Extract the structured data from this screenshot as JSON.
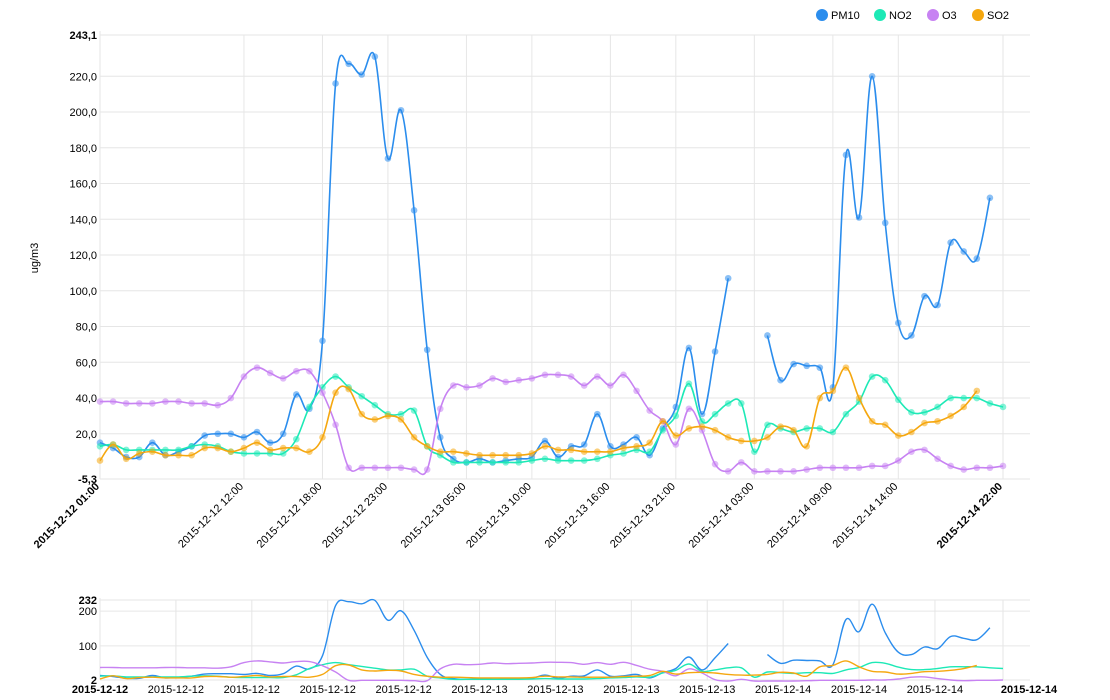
{
  "chart_data": [
    {
      "type": "line",
      "ylabel": "ug/m3",
      "ylim": [
        -5.3,
        243.1
      ],
      "y_ticks": [
        "243,1",
        "220,0",
        "200,0",
        "180,0",
        "160,0",
        "140,0",
        "120,0",
        "100,0",
        "80,0",
        "60,0",
        "40,0",
        "20,0",
        "-5,3"
      ],
      "y_tick_values": [
        243.1,
        220,
        200,
        180,
        160,
        140,
        120,
        100,
        80,
        60,
        40,
        20,
        -5.3
      ],
      "x_ticks": [
        {
          "label": "2015-12-12 01:00",
          "index": 0,
          "bold": true
        },
        {
          "label": "2015-12-12 12:00",
          "index": 11,
          "bold": false
        },
        {
          "label": "2015-12-12 18:00",
          "index": 17,
          "bold": false
        },
        {
          "label": "2015-12-12 23:00",
          "index": 22,
          "bold": false
        },
        {
          "label": "2015-12-13 05:00",
          "index": 28,
          "bold": false
        },
        {
          "label": "2015-12-13 10:00",
          "index": 33,
          "bold": false
        },
        {
          "label": "2015-12-13 16:00",
          "index": 39,
          "bold": false
        },
        {
          "label": "2015-12-13 21:00",
          "index": 44,
          "bold": false
        },
        {
          "label": "2015-12-14 03:00",
          "index": 50,
          "bold": false
        },
        {
          "label": "2015-12-14 09:00",
          "index": 56,
          "bold": false
        },
        {
          "label": "2015-12-14 14:00",
          "index": 61,
          "bold": false
        },
        {
          "label": "2015-12-14 22:00",
          "index": 69,
          "bold": true
        }
      ],
      "x_count": 70,
      "series": [
        {
          "name": "PM10",
          "color": "#2b8ded",
          "values": [
            15,
            12,
            7,
            7,
            15,
            8,
            10,
            13,
            19,
            20,
            20,
            18,
            21,
            15,
            20,
            42,
            34,
            72,
            216,
            227,
            221,
            231,
            174,
            201,
            145,
            67,
            18,
            6,
            4,
            6,
            4,
            5,
            6,
            7,
            16,
            7,
            13,
            14,
            31,
            13,
            14,
            18,
            8,
            23,
            35,
            68,
            31,
            66,
            107,
            null,
            null,
            75,
            50,
            59,
            58,
            57,
            46,
            176,
            141,
            220,
            138,
            82,
            75,
            97,
            92,
            127,
            122,
            118,
            152,
            null
          ]
        },
        {
          "name": "NO2",
          "color": "#1de9b6",
          "values": [
            13,
            14,
            11,
            11,
            11,
            11,
            11,
            13,
            14,
            13,
            10,
            9,
            9,
            9,
            9,
            17,
            35,
            46,
            52,
            46,
            41,
            36,
            31,
            31,
            33,
            13,
            8,
            4,
            4,
            4,
            4,
            4,
            4,
            5,
            6,
            5,
            5,
            5,
            6,
            8,
            9,
            11,
            10,
            22,
            30,
            48,
            27,
            31,
            37,
            37,
            10,
            25,
            23,
            21,
            23,
            23,
            21,
            31,
            38,
            52,
            50,
            39,
            32,
            32,
            35,
            40,
            40,
            40,
            37,
            35
          ]
        },
        {
          "name": "O3",
          "color": "#c782f2",
          "values": [
            38,
            38,
            37,
            37,
            37,
            38,
            38,
            37,
            37,
            36,
            40,
            52,
            57,
            54,
            51,
            55,
            55,
            43,
            25,
            1,
            1,
            1,
            1,
            1,
            0,
            0,
            34,
            47,
            46,
            47,
            51,
            49,
            50,
            51,
            53,
            53,
            52,
            47,
            52,
            47,
            53,
            44,
            33,
            27,
            14,
            34,
            22,
            3,
            -1,
            4,
            -1,
            -1,
            -1,
            -1,
            0,
            1,
            1,
            1,
            1,
            2,
            2,
            5,
            10,
            11,
            6,
            2,
            0,
            1,
            1,
            2
          ]
        },
        {
          "name": "SO2",
          "color": "#f5a70f",
          "values": [
            5,
            14,
            6,
            9,
            10,
            8,
            8,
            8,
            12,
            12,
            10,
            12,
            15,
            11,
            12,
            12,
            10,
            18,
            43,
            45,
            31,
            28,
            30,
            28,
            18,
            13,
            10,
            10,
            9,
            8,
            8,
            8,
            8,
            9,
            13,
            11,
            11,
            10,
            10,
            10,
            12,
            13,
            15,
            27,
            19,
            23,
            24,
            22,
            18,
            16,
            16,
            18,
            24,
            22,
            13,
            40,
            44,
            57,
            40,
            27,
            25,
            19,
            21,
            26,
            27,
            30,
            35,
            44,
            null,
            null
          ]
        }
      ]
    },
    {
      "type": "line",
      "role": "navigator",
      "ylim": [
        2,
        232
      ],
      "y_ticks": [
        "232",
        "200",
        "100",
        "2"
      ],
      "y_tick_values": [
        232,
        200,
        100,
        2
      ],
      "x_ticks": [
        {
          "label": "2015-12-12",
          "index": 0,
          "bold": true
        },
        {
          "label": "2015-12-12",
          "index": 5.8,
          "bold": false
        },
        {
          "label": "2015-12-12",
          "index": 11.6,
          "bold": false
        },
        {
          "label": "2015-12-12",
          "index": 17.4,
          "bold": false
        },
        {
          "label": "2015-12-12",
          "index": 23.2,
          "bold": false
        },
        {
          "label": "2015-12-13",
          "index": 29,
          "bold": false
        },
        {
          "label": "2015-12-13",
          "index": 34.8,
          "bold": false
        },
        {
          "label": "2015-12-13",
          "index": 40.6,
          "bold": false
        },
        {
          "label": "2015-12-13",
          "index": 46.4,
          "bold": false
        },
        {
          "label": "2015-12-14",
          "index": 52.2,
          "bold": false
        },
        {
          "label": "2015-12-14",
          "index": 58,
          "bold": false
        },
        {
          "label": "2015-12-14",
          "index": 63.8,
          "bold": false
        },
        {
          "label": "2015-12-14",
          "index": 69,
          "bold": true
        }
      ]
    }
  ],
  "legend": [
    {
      "label": "PM10",
      "color": "#2b8ded"
    },
    {
      "label": "NO2",
      "color": "#1de9b6"
    },
    {
      "label": "O3",
      "color": "#c782f2"
    },
    {
      "label": "SO2",
      "color": "#f5a70f"
    }
  ]
}
